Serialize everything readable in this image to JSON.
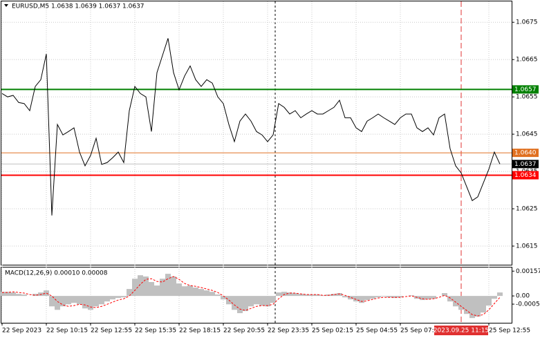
{
  "chart_data": [
    {
      "type": "line",
      "title": "EURUSD,M5 1.0638 1.0639 1.0637 1.0637",
      "categories": [
        "22 Sep 2023",
        null,
        null,
        null,
        null,
        null,
        null,
        null,
        "22 Sep 10:15",
        null,
        null,
        null,
        null,
        null,
        null,
        null,
        "22 Sep 12:55",
        null,
        null,
        null,
        null,
        null,
        null,
        null,
        "22 Sep 15:35",
        null,
        null,
        null,
        null,
        null,
        null,
        null,
        "22 Sep 18:15",
        null,
        null,
        null,
        null,
        null,
        null,
        null,
        "22 Sep 20:55",
        null,
        null,
        null,
        null,
        null,
        null,
        null,
        "22 Sep 23:35",
        null,
        null,
        null,
        null,
        null,
        null,
        null,
        "25 Sep 02:15",
        null,
        null,
        null,
        null,
        null,
        null,
        null,
        "25 Sep 04:55",
        null,
        null,
        null,
        null,
        null,
        null,
        null,
        "25 Sep 07:35",
        null,
        null,
        null,
        null,
        null,
        null,
        null,
        null,
        null,
        null,
        null,
        null,
        null,
        null,
        null,
        "25 Sep 12:55",
        null,
        null
      ],
      "series": [
        {
          "color": "#000000",
          "values": [
            1.06559,
            1.0655,
            1.06554,
            1.06535,
            1.06532,
            1.06513,
            1.06578,
            1.06596,
            1.06665,
            1.06232,
            1.06476,
            1.06448,
            1.06457,
            1.06467,
            1.06402,
            1.06365,
            1.06393,
            1.06439,
            1.06369,
            1.06374,
            1.06387,
            1.06402,
            1.06374,
            1.06513,
            1.06578,
            1.06559,
            1.0655,
            1.06457,
            1.06615,
            1.06661,
            1.06707,
            1.06615,
            1.06569,
            1.06606,
            1.06633,
            1.06596,
            1.06578,
            1.06596,
            1.06587,
            1.0655,
            1.06532,
            1.06476,
            1.0643,
            1.06485,
            1.06504,
            1.06485,
            1.06457,
            1.06448,
            1.0643,
            1.06448,
            1.06532,
            1.06522,
            1.06504,
            1.06513,
            1.06494,
            1.06504,
            1.06513,
            1.06504,
            1.06504,
            1.06513,
            1.06522,
            1.06541,
            1.06494,
            1.06494,
            1.06467,
            1.06457,
            1.06485,
            1.06494,
            1.06504,
            1.06494,
            1.06485,
            1.06476,
            1.06494,
            1.06504,
            1.06504,
            1.06467,
            1.06457,
            1.06467,
            1.06448,
            1.06494,
            1.06504,
            1.06411,
            1.06365,
            1.06346,
            1.06309,
            1.06272,
            1.06282,
            1.06319,
            1.06356,
            1.06402,
            1.0637
          ]
        }
      ],
      "ylim": [
        1.061,
        1.06806
      ],
      "yticks": [
        1.0675,
        1.0665,
        1.0655,
        1.0645,
        1.0635,
        1.0625,
        1.0615
      ],
      "levels": [
        {
          "value": 1.0657,
          "label": "1.0657",
          "color": "#008000"
        },
        {
          "value": 1.064,
          "label": "1.0640",
          "color": "#e07020"
        },
        {
          "value": 1.0637,
          "label": "1.0637",
          "color": "#c0c0c0"
        },
        {
          "value": 1.0634,
          "label": "1.0634",
          "color": "#ff0000"
        }
      ],
      "annotation": "2023.09.25 11:15",
      "grid": true
    },
    {
      "type": "bar",
      "title": "MACD(12,26,9) 0.00010 0.00008",
      "series": [
        {
          "color": "#c0c0c0",
          "values": [
            0.00026,
            0.00026,
            0.00022,
            0.00013,
            9e-05,
            0,
            0.00013,
            0.00022,
            0.00035,
            -0.00066,
            -0.00088,
            -0.00066,
            -0.00053,
            -0.00044,
            -0.00053,
            -0.00079,
            -0.00088,
            -0.00066,
            -0.00053,
            -0.00035,
            -0.00022,
            -0.00013,
            -9e-05,
            0.00044,
            0.00109,
            0.00131,
            0.00123,
            0.00088,
            0.00066,
            0.00109,
            0.0014,
            0.00123,
            0.00079,
            0.00061,
            0.00066,
            0.00053,
            0.00044,
            0.00035,
            0.00026,
            9e-05,
            -0.00022,
            -0.00053,
            -0.00088,
            -0.00109,
            -0.00096,
            -0.00066,
            -0.00053,
            -0.00061,
            -0.00066,
            -0.00044,
            0.00022,
            0.00026,
            0.00022,
            0.00018,
            0.00013,
            9e-05,
            9e-05,
            9e-05,
            4e-05,
            9e-05,
            0.00013,
            0.00018,
            -9e-05,
            -0.00022,
            -0.00035,
            -0.00044,
            -0.00026,
            -0.00018,
            -9e-05,
            -4e-05,
            -9e-05,
            -0.00013,
            -9e-05,
            0,
            4e-05,
            -0.00018,
            -0.00026,
            -0.00022,
            -0.00018,
            0,
            0.00018,
            -0.00035,
            -0.00066,
            -0.00088,
            -0.00114,
            -0.0014,
            -0.00131,
            -0.00105,
            -0.00061,
            -0.00018,
            0.00022
          ]
        },
        {
          "type": "line",
          "color": "#ff0000",
          "values": [
            0.00022,
            0.00022,
            0.00026,
            0.00022,
            0.00018,
            9e-05,
            4e-05,
            9e-05,
            0.00018,
            0,
            -0.00035,
            -0.00057,
            -0.00066,
            -0.00061,
            -0.00053,
            -0.00057,
            -0.0007,
            -0.00074,
            -0.00066,
            -0.00053,
            -0.00039,
            -0.00026,
            -0.00018,
            0,
            0.00035,
            0.00074,
            0.00105,
            0.00109,
            0.00092,
            0.00088,
            0.00109,
            0.00123,
            0.00105,
            0.00079,
            0.00066,
            0.00061,
            0.00053,
            0.00044,
            0.00035,
            0.00022,
            0,
            -0.00026,
            -0.00057,
            -0.00083,
            -0.00092,
            -0.00079,
            -0.00066,
            -0.00061,
            -0.00061,
            -0.00053,
            -0.00018,
            9e-05,
            0.00018,
            0.00018,
            0.00013,
            9e-05,
            9e-05,
            9e-05,
            4e-05,
            4e-05,
            9e-05,
            0.00013,
            4e-05,
            -9e-05,
            -0.00022,
            -0.00035,
            -0.00031,
            -0.00022,
            -0.00013,
            -9e-05,
            -9e-05,
            -9e-05,
            -9e-05,
            -4e-05,
            0,
            -9e-05,
            -0.00018,
            -0.00022,
            -0.00018,
            -9e-05,
            4e-05,
            -0.00013,
            -0.00039,
            -0.00066,
            -0.00092,
            -0.00118,
            -0.00127,
            -0.00118,
            -0.00088,
            -0.00048,
            -9e-05
          ]
        }
      ],
      "ylim": [
        -0.0017,
        0.0018
      ],
      "yticks": [
        0.00157,
        {
          "value": 0,
          "label": "0.00"
        },
        -0.00052
      ]
    }
  ]
}
